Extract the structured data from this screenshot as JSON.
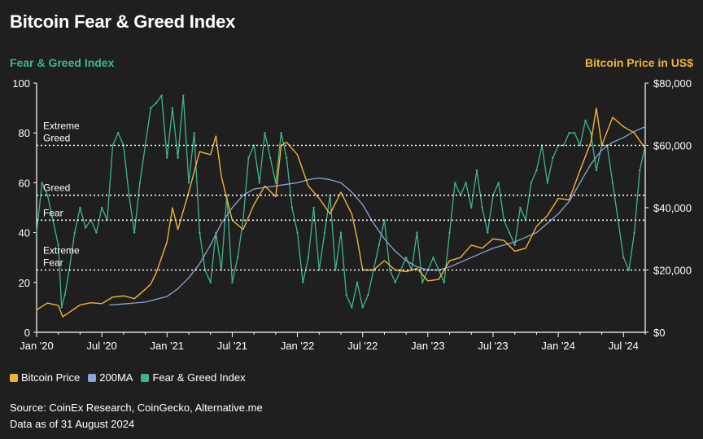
{
  "title": "Bitcoin Fear & Greed Index",
  "source": "Source: CoinEx Research, CoinGecko, Alternative.me",
  "data_note": "Data as of 31 August 2024",
  "colors": {
    "price": "#f0b43c",
    "ma": "#8ea4d8",
    "fng": "#3fb68b",
    "background": "#1f1f1f"
  },
  "chart_data": {
    "type": "line",
    "title": "Bitcoin Fear & Greed Index",
    "ylabel_left": "Fear & Greed Index",
    "ylabel_right": "Bitcoin Price in US$",
    "ylim_left": [
      0,
      100
    ],
    "ylim_right": [
      0,
      80000
    ],
    "left_ticks": [
      "0",
      "20",
      "40",
      "60",
      "80",
      "100"
    ],
    "right_ticks": [
      "$0",
      "$20,000",
      "$40,000",
      "$60,000",
      "$80,000"
    ],
    "x_ticks": [
      "Jan '20",
      "Jul '20",
      "Jan '21",
      "Jul '21",
      "Jan '22",
      "Jul '22",
      "Jan '23",
      "Jul '23",
      "Jan '24",
      "Jul '24"
    ],
    "x_range_months": [
      0,
      56
    ],
    "thresholds": [
      {
        "label": "Extreme Greed",
        "lines": [
          "Extreme",
          "Greed"
        ],
        "value": 75
      },
      {
        "label": "Greed",
        "lines": [
          "Greed"
        ],
        "value": 55
      },
      {
        "label": "Fear",
        "lines": [
          "Fear"
        ],
        "value": 45
      },
      {
        "label": "Extreme Fear",
        "lines": [
          "Extreme",
          "Fear"
        ],
        "value": 25
      }
    ],
    "legend": [
      "Bitcoin Price",
      "200MA",
      "Fear & Greed Index"
    ],
    "series": [
      {
        "name": "Bitcoin Price",
        "axis": "right",
        "x": [
          0,
          1,
          2,
          2.4,
          3,
          4,
          5,
          6,
          7,
          8,
          9,
          10,
          10.5,
          11,
          12,
          12.5,
          13,
          14,
          15,
          16,
          16.5,
          17,
          18,
          19,
          20,
          21,
          22,
          22.5,
          23,
          24,
          25,
          26,
          27,
          28,
          29,
          29.5,
          30,
          31,
          32,
          33,
          34,
          35,
          36,
          37,
          38,
          39,
          40,
          41,
          42,
          43,
          44,
          45,
          46,
          47,
          48,
          49,
          50,
          51,
          51.5,
          52,
          53,
          54,
          55,
          56
        ],
        "values": [
          7200,
          9400,
          8600,
          5000,
          6400,
          8800,
          9500,
          9200,
          11300,
          11700,
          10800,
          13800,
          15500,
          19000,
          29000,
          40000,
          33000,
          45000,
          58000,
          57000,
          63000,
          50000,
          36000,
          33000,
          41000,
          47000,
          43500,
          60000,
          61000,
          57000,
          47000,
          43000,
          38000,
          45000,
          38000,
          30000,
          20000,
          20000,
          23000,
          20000,
          19500,
          20500,
          16500,
          17000,
          23000,
          24000,
          28000,
          27000,
          30000,
          29500,
          26000,
          27000,
          34000,
          37500,
          43000,
          42500,
          52000,
          61000,
          72000,
          60000,
          69000,
          66000,
          64000,
          59000
        ]
      },
      {
        "name": "200MA",
        "axis": "right",
        "x": [
          6.7,
          8,
          10,
          12,
          13,
          14,
          15,
          16,
          17,
          18,
          19,
          20,
          21,
          22,
          23,
          24,
          25,
          26,
          27,
          28,
          29,
          30,
          31,
          32,
          33,
          34,
          35,
          36,
          37,
          38,
          39,
          40,
          41,
          42,
          43,
          44,
          45,
          46,
          47,
          48,
          49,
          50,
          51,
          52,
          53,
          54,
          55,
          56
        ],
        "values": [
          8800,
          9100,
          9700,
          11500,
          14000,
          17500,
          22000,
          28000,
          35000,
          40000,
          44000,
          46000,
          46500,
          47000,
          47500,
          48000,
          49000,
          49500,
          49000,
          48000,
          45000,
          41000,
          35000,
          30000,
          26000,
          23000,
          21000,
          20000,
          20000,
          21000,
          22500,
          24000,
          25500,
          27000,
          28000,
          29000,
          30500,
          32000,
          35000,
          38000,
          42000,
          48000,
          54000,
          58500,
          61000,
          62500,
          64500,
          66000
        ]
      },
      {
        "name": "Fear & Greed Index",
        "axis": "left",
        "x": [
          0,
          0.5,
          1,
          1.5,
          2,
          2.3,
          2.6,
          3,
          3.5,
          4,
          4.5,
          5,
          5.5,
          6,
          6.5,
          7,
          7.5,
          8,
          8.5,
          9,
          9.5,
          10,
          10.5,
          11,
          11.5,
          12,
          12.5,
          13,
          13.5,
          14,
          14.5,
          15,
          15.5,
          16,
          16.5,
          17,
          17.5,
          18,
          18.5,
          19,
          19.5,
          20,
          20.5,
          21,
          21.5,
          22,
          22.5,
          23,
          23.5,
          24,
          24.5,
          25,
          25.5,
          26,
          26.5,
          27,
          27.5,
          28,
          28.5,
          29,
          29.5,
          30,
          30.5,
          31,
          31.5,
          32,
          32.5,
          33,
          33.5,
          34,
          34.5,
          35,
          35.5,
          36,
          36.5,
          37,
          37.5,
          38,
          38.5,
          39,
          39.5,
          40,
          40.5,
          41,
          41.5,
          42,
          42.5,
          43,
          43.5,
          44,
          44.5,
          45,
          45.5,
          46,
          46.5,
          47,
          47.5,
          48,
          48.5,
          49,
          49.5,
          50,
          50.5,
          51,
          51.5,
          52,
          52.5,
          53,
          53.5,
          54,
          54.5,
          55,
          55.5,
          56
        ],
        "values": [
          40,
          60,
          55,
          45,
          35,
          10,
          15,
          25,
          40,
          50,
          42,
          45,
          40,
          50,
          45,
          75,
          80,
          75,
          55,
          40,
          60,
          75,
          90,
          92,
          95,
          70,
          90,
          70,
          95,
          60,
          80,
          40,
          25,
          20,
          40,
          25,
          55,
          20,
          30,
          45,
          70,
          75,
          60,
          80,
          70,
          60,
          80,
          70,
          50,
          40,
          20,
          30,
          50,
          25,
          40,
          55,
          25,
          40,
          15,
          10,
          20,
          10,
          15,
          25,
          35,
          45,
          25,
          20,
          25,
          30,
          25,
          40,
          20,
          25,
          30,
          25,
          20,
          40,
          60,
          55,
          60,
          50,
          65,
          50,
          40,
          55,
          60,
          45,
          40,
          35,
          50,
          45,
          60,
          65,
          75,
          60,
          70,
          75,
          75,
          80,
          80,
          75,
          85,
          80,
          65,
          75,
          75,
          60,
          45,
          30,
          25,
          40,
          65,
          75
        ]
      }
    ]
  }
}
